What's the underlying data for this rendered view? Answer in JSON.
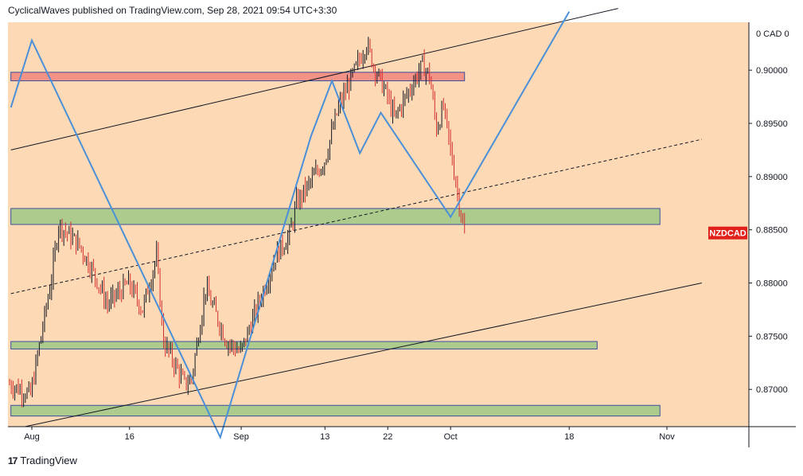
{
  "header": {
    "publish_line": "CyclicalWaves published on TradingView.com, Sep 28, 2021 09:54 UTC+3:30"
  },
  "branding": {
    "logo": "17",
    "name": "TradingView"
  },
  "chart_data": {
    "type": "candlestick",
    "symbol": "NZDCAD",
    "symbol_color": "#e0201b",
    "currency_label": "0 CAD 0",
    "ylim": [
      0.8665,
      0.9045
    ],
    "y_ticks": [
      "0.90000",
      "0.89500",
      "0.89000",
      "0.88500",
      "0.88000",
      "0.87500",
      "0.87000"
    ],
    "y_tick_values": [
      0.9,
      0.895,
      0.89,
      0.885,
      0.88,
      0.875,
      0.87
    ],
    "x_ticks": [
      "Aug",
      "16",
      "Sep",
      "13",
      "22",
      "Oct",
      "18",
      "Nov"
    ],
    "x_tick_dates": [
      "2021-08-02",
      "2021-08-16",
      "2021-09-01",
      "2021-09-13",
      "2021-09-22",
      "2021-10-01",
      "2021-10-18",
      "2021-11-01"
    ],
    "last_price": 0.8847,
    "colors": {
      "background": "#fdd9b5",
      "up": "#131722",
      "down": "#d32f2f",
      "wave": "#4a90d9",
      "resistance": "#f28b82",
      "support": "#a5c98a"
    },
    "price_path": [
      {
        "date": "2021-07-30",
        "value": 0.8705
      },
      {
        "date": "2021-08-02",
        "value": 0.8695
      },
      {
        "date": "2021-08-05",
        "value": 0.8805
      },
      {
        "date": "2021-08-06",
        "value": 0.8855
      },
      {
        "date": "2021-08-09",
        "value": 0.8835
      },
      {
        "date": "2021-08-11",
        "value": 0.881
      },
      {
        "date": "2021-08-13",
        "value": 0.878
      },
      {
        "date": "2021-08-16",
        "value": 0.88
      },
      {
        "date": "2021-08-18",
        "value": 0.8775
      },
      {
        "date": "2021-08-20",
        "value": 0.8825
      },
      {
        "date": "2021-08-21",
        "value": 0.8745
      },
      {
        "date": "2021-08-24",
        "value": 0.8705
      },
      {
        "date": "2021-08-25",
        "value": 0.871
      },
      {
        "date": "2021-08-27",
        "value": 0.8795
      },
      {
        "date": "2021-08-30",
        "value": 0.8745
      },
      {
        "date": "2021-09-01",
        "value": 0.8735
      },
      {
        "date": "2021-09-03",
        "value": 0.877
      },
      {
        "date": "2021-09-06",
        "value": 0.8825
      },
      {
        "date": "2021-09-08",
        "value": 0.8845
      },
      {
        "date": "2021-09-09",
        "value": 0.8875
      },
      {
        "date": "2021-09-13",
        "value": 0.8915
      },
      {
        "date": "2021-09-15",
        "value": 0.8965
      },
      {
        "date": "2021-09-17",
        "value": 0.8995
      },
      {
        "date": "2021-09-19",
        "value": 0.9025
      },
      {
        "date": "2021-09-20",
        "value": 0.9005
      },
      {
        "date": "2021-09-22",
        "value": 0.8975
      },
      {
        "date": "2021-09-23",
        "value": 0.8955
      },
      {
        "date": "2021-09-27",
        "value": 0.9005
      },
      {
        "date": "2021-09-28",
        "value": 0.8995
      },
      {
        "date": "2021-09-29",
        "value": 0.8945
      },
      {
        "date": "2021-09-30",
        "value": 0.8965
      },
      {
        "date": "2021-10-01",
        "value": 0.8925
      },
      {
        "date": "2021-10-02",
        "value": 0.8885
      },
      {
        "date": "2021-10-03",
        "value": 0.8845
      }
    ],
    "zones": [
      {
        "name": "resistance-zone",
        "kind": "resistance",
        "y_top": 0.8998,
        "y_bottom": 0.899,
        "x_start": "2021-07-30",
        "x_end": "2021-10-03"
      },
      {
        "name": "support-zone-upper",
        "kind": "support",
        "y_top": 0.887,
        "y_bottom": 0.8855,
        "x_start": "2021-07-30",
        "x_end": "2021-10-31"
      },
      {
        "name": "support-zone-middle",
        "kind": "support",
        "y_top": 0.8745,
        "y_bottom": 0.8738,
        "x_start": "2021-07-30",
        "x_end": "2021-10-22"
      },
      {
        "name": "support-zone-lower",
        "kind": "support",
        "y_top": 0.8685,
        "y_bottom": 0.8675,
        "x_start": "2021-07-30",
        "x_end": "2021-10-31"
      }
    ],
    "channel_lines": [
      {
        "name": "channel-upper-line",
        "style": "solid",
        "points": [
          {
            "date": "2021-07-30",
            "value": 0.8925
          },
          {
            "date": "2021-10-25",
            "value": 0.9058
          }
        ]
      },
      {
        "name": "channel-mid-line",
        "style": "dashed",
        "points": [
          {
            "date": "2021-07-30",
            "value": 0.879
          },
          {
            "date": "2021-11-06",
            "value": 0.8935
          }
        ]
      },
      {
        "name": "channel-lower-line",
        "style": "solid",
        "points": [
          {
            "date": "2021-08-01",
            "value": 0.8665
          },
          {
            "date": "2021-11-06",
            "value": 0.88
          }
        ]
      }
    ],
    "wave_path": [
      {
        "date": "2021-07-30",
        "value": 0.8965
      },
      {
        "date": "2021-08-02",
        "value": 0.9028
      },
      {
        "date": "2021-08-29",
        "value": 0.8655
      },
      {
        "date": "2021-09-11",
        "value": 0.8938
      },
      {
        "date": "2021-09-14",
        "value": 0.899
      },
      {
        "date": "2021-09-18",
        "value": 0.8922
      },
      {
        "date": "2021-09-21",
        "value": 0.896
      },
      {
        "date": "2021-10-01",
        "value": 0.8862
      },
      {
        "date": "2021-10-18",
        "value": 0.9055
      }
    ],
    "candle_seed": 7
  }
}
